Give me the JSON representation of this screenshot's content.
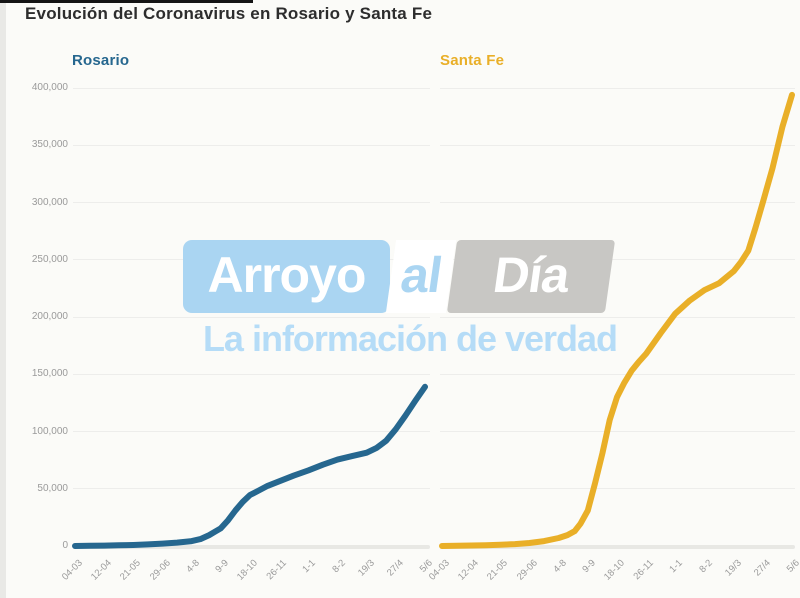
{
  "title": "Evolución del Coronavirus en Rosario y Santa Fe",
  "watermark": {
    "brand_arroyo": "Arroyo",
    "brand_al": "al",
    "brand_dia": "Día",
    "tagline": "La información de verdad"
  },
  "colors": {
    "rosario": "#26678f",
    "santafe": "#e9af28",
    "title_text": "#2d2d2d",
    "axis_text": "#9a9a9a",
    "gridline": "#ededeb",
    "baseline": "#e8e8e4",
    "background": "#fbfbf8",
    "watermark_blue": "#aad5f2",
    "watermark_gray": "#c8c7c4",
    "watermark_tagline": "#b5dcf7"
  },
  "chart_data": [
    {
      "type": "line",
      "title": "Rosario",
      "color_key": "rosario",
      "grid": true,
      "legend_position": "top-left-panel-label",
      "categories": [
        "04-03",
        "12-04",
        "21-05",
        "29-06",
        "4-8",
        "9-9",
        "18-10",
        "26-11",
        "1-1",
        "8-2",
        "19/3",
        "27/4",
        "5/6"
      ],
      "ylim": [
        0,
        400000
      ],
      "yticks": [
        0,
        50000,
        100000,
        150000,
        200000,
        250000,
        300000,
        350000,
        400000
      ],
      "ytick_labels": [
        "0",
        "50,000",
        "100,000",
        "150,000",
        "200,000",
        "250,000",
        "300,000",
        "350,000",
        "400,000"
      ],
      "series": [
        {
          "name": "Rosario",
          "points": [
            [
              0,
              0
            ],
            [
              0.5,
              150
            ],
            [
              1,
              350
            ],
            [
              1.5,
              600
            ],
            [
              2,
              900
            ],
            [
              2.5,
              1400
            ],
            [
              3,
              2100
            ],
            [
              3.5,
              3000
            ],
            [
              4,
              4300
            ],
            [
              4.3,
              6000
            ],
            [
              4.6,
              9500
            ],
            [
              4.8,
              12500
            ],
            [
              5,
              15500
            ],
            [
              5.25,
              22500
            ],
            [
              5.5,
              31000
            ],
            [
              5.75,
              38500
            ],
            [
              6,
              44500
            ],
            [
              6.3,
              48500
            ],
            [
              6.6,
              52500
            ],
            [
              7,
              56500
            ],
            [
              7.5,
              61500
            ],
            [
              8,
              66000
            ],
            [
              8.5,
              71000
            ],
            [
              9,
              75500
            ],
            [
              9.5,
              78500
            ],
            [
              10,
              81500
            ],
            [
              10.33,
              85500
            ],
            [
              10.67,
              92000
            ],
            [
              11,
              102000
            ],
            [
              11.33,
              114000
            ],
            [
              11.67,
              127000
            ],
            [
              12,
              139000
            ]
          ]
        }
      ]
    },
    {
      "type": "line",
      "title": "Santa Fe",
      "color_key": "santafe",
      "grid": true,
      "legend_position": "top-left-panel-label",
      "categories": [
        "04-03",
        "12-04",
        "21-05",
        "29-06",
        "4-8",
        "9-9",
        "18-10",
        "26-11",
        "1-1",
        "8-2",
        "19/3",
        "27/4",
        "5/6"
      ],
      "ylim": [
        0,
        400000
      ],
      "yticks": [
        0,
        50000,
        100000,
        150000,
        200000,
        250000,
        300000,
        350000,
        400000
      ],
      "ytick_labels": [
        "0",
        "50,000",
        "100,000",
        "150,000",
        "200,000",
        "250,000",
        "300,000",
        "350,000",
        "400,000"
      ],
      "series": [
        {
          "name": "Santa Fe",
          "points": [
            [
              0,
              0
            ],
            [
              0.5,
              150
            ],
            [
              1,
              400
            ],
            [
              1.5,
              700
            ],
            [
              2,
              1100
            ],
            [
              2.5,
              1700
            ],
            [
              3,
              2600
            ],
            [
              3.5,
              4300
            ],
            [
              4,
              7000
            ],
            [
              4.3,
              9500
            ],
            [
              4.55,
              13000
            ],
            [
              4.75,
              19500
            ],
            [
              5,
              31000
            ],
            [
              5.25,
              55000
            ],
            [
              5.5,
              81000
            ],
            [
              5.75,
              110000
            ],
            [
              6,
              130000
            ],
            [
              6.25,
              142500
            ],
            [
              6.5,
              153000
            ],
            [
              6.75,
              161000
            ],
            [
              7,
              168000
            ],
            [
              7.5,
              186000
            ],
            [
              8,
              203000
            ],
            [
              8.5,
              214500
            ],
            [
              9,
              223500
            ],
            [
              9.5,
              229500
            ],
            [
              10,
              240000
            ],
            [
              10.25,
              248000
            ],
            [
              10.5,
              258000
            ],
            [
              10.75,
              278000
            ],
            [
              11,
              300000
            ],
            [
              11.33,
              330000
            ],
            [
              11.67,
              366000
            ],
            [
              12,
              394000
            ]
          ]
        }
      ]
    }
  ]
}
